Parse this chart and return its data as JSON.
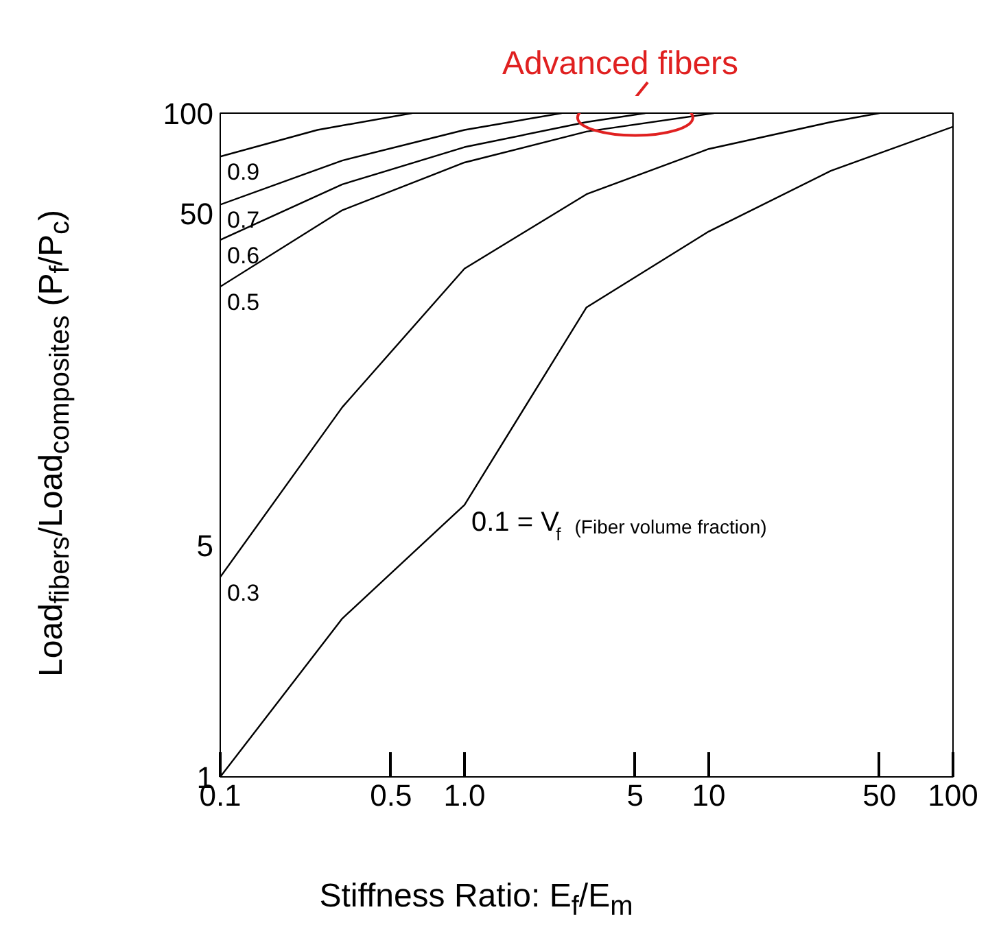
{
  "chart_data": {
    "type": "line",
    "xlabel": "Stiffness Ratio: E$_{f}$/E$_{m}$",
    "ylabel": "Load$_{fibers}$/Load$_{composites}$ (P$_{f}$/P$_{c}$)",
    "log": "xy",
    "xlim": [
      0.1,
      100
    ],
    "ylim": [
      1,
      100
    ],
    "xticks": [
      0.1,
      0.5,
      {
        "value": 1,
        "label": "1.0"
      },
      5,
      10,
      50,
      100
    ],
    "yticks": [
      1,
      5,
      50,
      100
    ],
    "grid": false,
    "marker": "none",
    "line_style": "solid",
    "series": [
      {
        "name": "0.9",
        "color": "#000000",
        "x": [
          0.1,
          0.25,
          0.61
        ],
        "values": [
          74,
          89,
          100
        ]
      },
      {
        "name": "0.7",
        "color": "#000000",
        "x": [
          0.1,
          0.316,
          1.0,
          2.5
        ],
        "values": [
          53,
          72,
          89,
          100
        ]
      },
      {
        "name": "0.6",
        "color": "#000000",
        "x": [
          0.1,
          0.316,
          1.0,
          3.16,
          5.5
        ],
        "values": [
          41.5,
          61,
          79,
          94,
          100
        ]
      },
      {
        "name": "0.5",
        "color": "#000000",
        "x": [
          0.1,
          0.316,
          1.0,
          3.16,
          10.5
        ],
        "values": [
          30,
          51,
          71,
          88,
          100
        ]
      },
      {
        "name": "0.3",
        "color": "#000000",
        "x": [
          0.1,
          0.316,
          1.0,
          3.16,
          10,
          31.6,
          50
        ],
        "values": [
          4,
          13,
          34,
          57,
          78,
          94,
          100
        ]
      },
      {
        "name": "0.1 = V$_{f}$ (Fiber volume fraction)",
        "color": "#000000",
        "x": [
          0.1,
          0.316,
          1.0,
          3.16,
          10,
          31.6,
          100
        ],
        "values": [
          1,
          3,
          6.6,
          26,
          44,
          67,
          91
        ]
      }
    ],
    "annotations": [
      {
        "text": "Advanced fibers",
        "x": 5,
        "y": 97
      }
    ]
  }
}
